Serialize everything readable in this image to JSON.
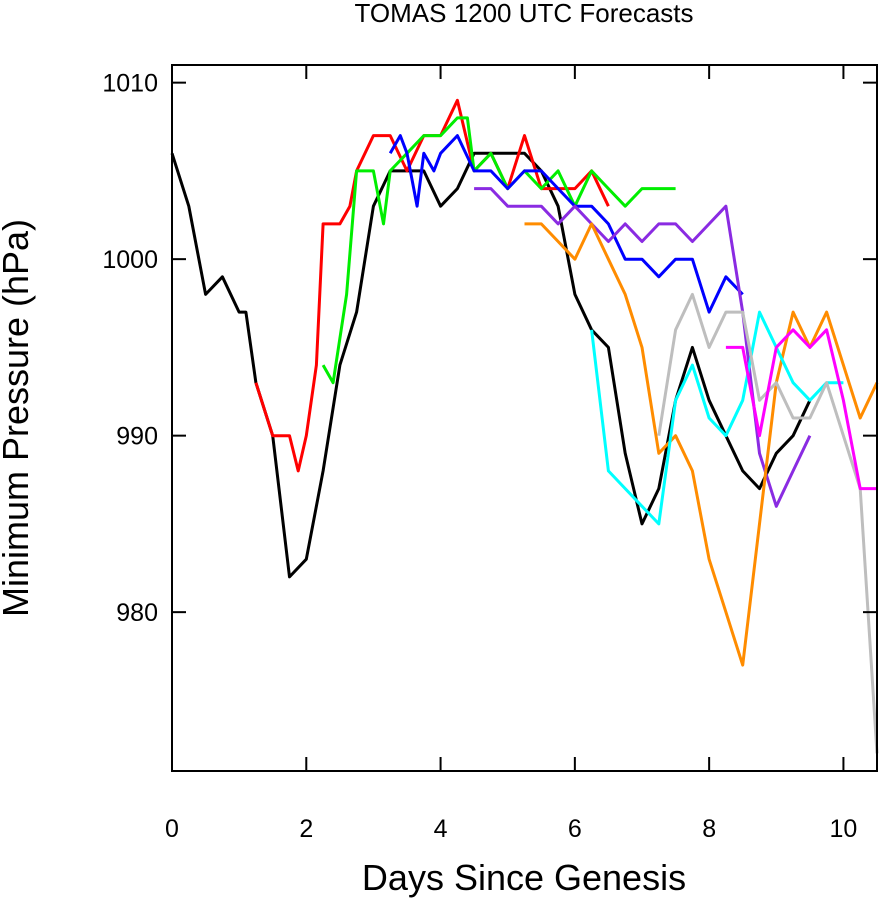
{
  "chart_data": {
    "type": "line",
    "title": "TOMAS 1200 UTC Forecasts",
    "xlabel": "Days Since Genesis",
    "ylabel": "Minimum Pressure (hPa)",
    "xlim": [
      0,
      10.5
    ],
    "ylim": [
      971,
      1011
    ],
    "xticks": [
      0,
      2,
      4,
      6,
      8,
      10
    ],
    "yticks": [
      980,
      990,
      1000,
      1010
    ],
    "grid": false,
    "legend": "none",
    "series": [
      {
        "color": "#000000",
        "x": [
          0,
          0.25,
          0.5,
          0.75,
          1,
          1.1,
          1.25,
          1.5,
          1.75,
          2,
          2.25,
          2.5,
          2.75,
          3,
          3.25,
          3.5,
          3.75,
          4,
          4.25,
          4.5,
          4.75,
          5,
          5.25,
          5.5,
          5.75,
          6,
          6.25,
          6.5,
          6.75,
          7,
          7.25,
          7.5,
          7.75,
          8,
          8.25,
          8.5,
          8.75,
          9,
          9.25,
          9.5
        ],
        "y": [
          1006,
          1003,
          998,
          999,
          997,
          997,
          993,
          990,
          982,
          983,
          988,
          994,
          997,
          1003,
          1005,
          1005,
          1005,
          1003,
          1004,
          1006,
          1006,
          1006,
          1006,
          1005,
          1003,
          998,
          996,
          995,
          989,
          985,
          987,
          992,
          995,
          992,
          990,
          988,
          987,
          989,
          990,
          992
        ]
      },
      {
        "color": "#ff0000",
        "x": [
          1.25,
          1.5,
          1.75,
          1.88,
          2,
          2.15,
          2.25,
          2.5,
          2.65,
          2.75,
          3,
          3.25,
          3.5,
          3.75,
          4,
          4.25,
          4.5,
          4.75,
          5,
          5.25,
          5.5,
          5.75,
          6,
          6.25,
          6.5
        ],
        "y": [
          993,
          990,
          990,
          988,
          990,
          994,
          1002,
          1002,
          1003,
          1005,
          1007,
          1007,
          1005,
          1007,
          1007,
          1009,
          1005,
          1006,
          1004,
          1007,
          1004,
          1004,
          1004,
          1005,
          1003
        ]
      },
      {
        "color": "#00ee00",
        "x": [
          2.25,
          2.4,
          2.6,
          2.75,
          3,
          3.15,
          3.25,
          3.5,
          3.75,
          4,
          4.25,
          4.4,
          4.5,
          4.75,
          5,
          5.25,
          5.5,
          5.75,
          6,
          6.25,
          6.5,
          6.75,
          7,
          7.25,
          7.5
        ],
        "y": [
          994,
          993,
          998,
          1005,
          1005,
          1002,
          1005,
          1006,
          1007,
          1007,
          1008,
          1008,
          1005,
          1006,
          1004,
          1005,
          1004,
          1005,
          1003,
          1005,
          1004,
          1003,
          1004,
          1004,
          1004
        ]
      },
      {
        "color": "#0000ff",
        "x": [
          3.25,
          3.4,
          3.5,
          3.65,
          3.75,
          3.9,
          4,
          4.25,
          4.5,
          4.75,
          5,
          5.25,
          5.5,
          5.75,
          6,
          6.25,
          6.5,
          6.75,
          7,
          7.25,
          7.5,
          7.75,
          8,
          8.25,
          8.5
        ],
        "y": [
          1006,
          1007,
          1006,
          1003,
          1006,
          1005,
          1006,
          1007,
          1005,
          1005,
          1004,
          1005,
          1005,
          1004,
          1003,
          1003,
          1002,
          1000,
          1000,
          999,
          1000,
          1000,
          997,
          999,
          998
        ]
      },
      {
        "color": "#8a2be2",
        "x": [
          4.5,
          4.75,
          5,
          5.25,
          5.5,
          5.75,
          6,
          6.25,
          6.5,
          6.75,
          7,
          7.25,
          7.5,
          7.75,
          8,
          8.25,
          8.5,
          8.75,
          9,
          9.25,
          9.5
        ],
        "y": [
          1004,
          1004,
          1003,
          1003,
          1003,
          1002,
          1003,
          1002,
          1001,
          1002,
          1001,
          1002,
          1002,
          1001,
          1002,
          1003,
          997,
          989,
          986,
          988,
          990
        ]
      },
      {
        "color": "#ff8c00",
        "x": [
          5.25,
          5.5,
          5.75,
          6,
          6.25,
          6.5,
          6.75,
          7,
          7.25,
          7.5,
          7.75,
          8,
          8.25,
          8.5,
          8.75,
          9,
          9.25,
          9.5,
          9.75,
          10,
          10.25,
          10.5
        ],
        "y": [
          1002,
          1002,
          1001,
          1000,
          1002,
          1000,
          998,
          995,
          989,
          990,
          988,
          983,
          980,
          977,
          985,
          993,
          997,
          995,
          997,
          994,
          991,
          993
        ]
      },
      {
        "color": "#00ffff",
        "x": [
          6.25,
          6.5,
          6.75,
          7,
          7.25,
          7.5,
          7.75,
          8,
          8.25,
          8.5,
          8.75,
          9,
          9.25,
          9.5,
          9.75,
          10
        ],
        "y": [
          996,
          988,
          987,
          986,
          985,
          992,
          994,
          991,
          990,
          992,
          997,
          995,
          993,
          992,
          993,
          993
        ]
      },
      {
        "color": "#bebebe",
        "x": [
          7.25,
          7.5,
          7.75,
          8,
          8.25,
          8.5,
          8.75,
          9,
          9.25,
          9.5,
          9.75,
          10,
          10.25,
          10.5
        ],
        "y": [
          990,
          996,
          998,
          995,
          997,
          997,
          992,
          993,
          991,
          991,
          993,
          990,
          987,
          972
        ]
      },
      {
        "color": "#ff00ff",
        "x": [
          8.25,
          8.5,
          8.75,
          9,
          9.25,
          9.5,
          9.75,
          10,
          10.25,
          10.5
        ],
        "y": [
          995,
          995,
          990,
          995,
          996,
          995,
          996,
          992,
          987,
          987
        ]
      }
    ]
  }
}
